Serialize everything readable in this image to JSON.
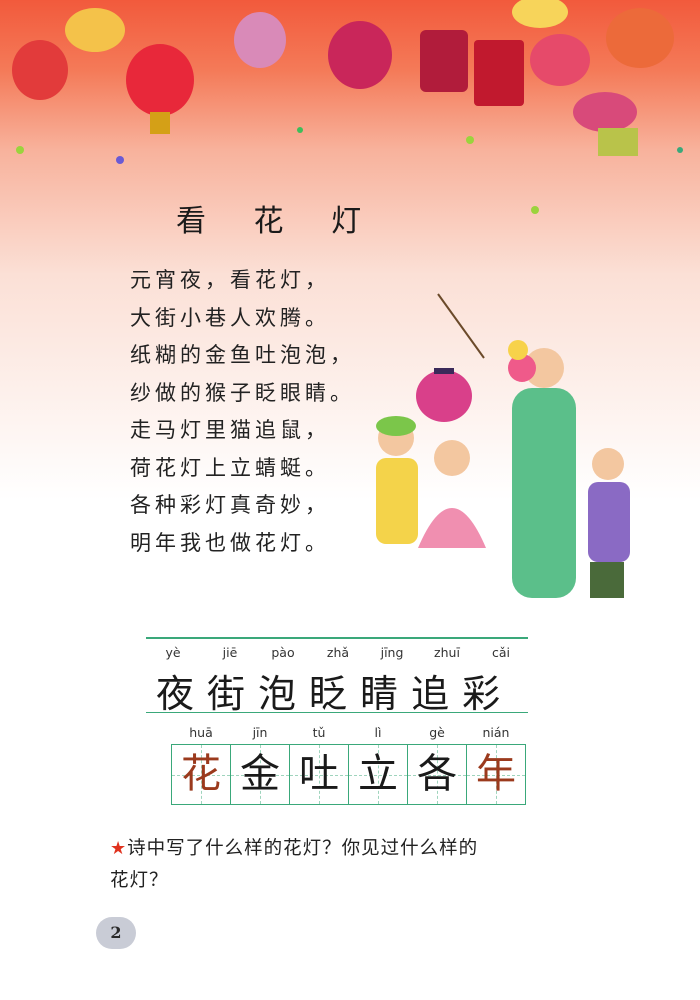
{
  "lesson": {
    "title": "看 花 灯",
    "poem": [
      "元宵夜，看花灯，",
      "大街小巷人欢腾。",
      "纸糊的金鱼吐泡泡，",
      "纱做的猴子眨眼睛。",
      "走马灯里猫追鼠，",
      "荷花灯上立蜻蜓。",
      "各种彩灯真奇妙，",
      "明年我也做花灯。"
    ]
  },
  "vocab_read": {
    "pinyin": [
      "yè",
      "jiē",
      "pào",
      "zhǎ",
      "jīng",
      "zhuī",
      "cǎi"
    ],
    "chars": [
      "夜",
      "街",
      "泡",
      "眨",
      "睛",
      "追",
      "彩"
    ]
  },
  "vocab_write": {
    "pinyin": [
      "huā",
      "jīn",
      "tǔ",
      "lì",
      "gè",
      "nián"
    ],
    "chars": [
      "花",
      "金",
      "吐",
      "立",
      "各",
      "年"
    ],
    "char_colors": [
      "#9b3a1d",
      "#1a1a1a",
      "#1a1a1a",
      "#1a1a1a",
      "#1a1a1a",
      "#9b3a1d"
    ]
  },
  "question": {
    "star": "★",
    "line1": "诗中写了什么样的花灯？你见过什么样的",
    "line2": "花灯？"
  },
  "page_number": "2",
  "colors": {
    "accent_green": "#3aa87a",
    "banner_red": "#f25a3c",
    "star_red": "#e0321e"
  }
}
